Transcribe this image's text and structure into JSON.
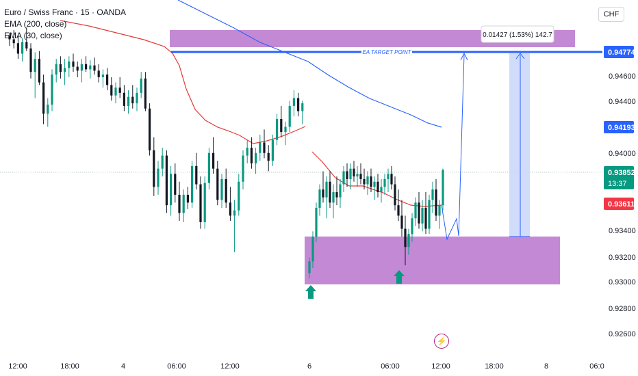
{
  "legend": {
    "title": "Euro / Swiss Franc · 15 · OANDA",
    "ema200": "EMA (200, close)",
    "ema30": "EMA (30, close)"
  },
  "currency_button": "CHF",
  "colors": {
    "up": "#089981",
    "down": "#131722",
    "ema30": "#e53935",
    "ema200": "#2962ff",
    "target_line": "#2962ff",
    "zone": "#c389d4",
    "projection": "#2962ff",
    "measure_box": "#c8d6f8",
    "arrow": "#089981",
    "price_current": "#089981",
    "price_red": "#f23645",
    "price_blue": "#2962ff"
  },
  "chart_data": {
    "type": "candlestick",
    "y_axis_ticks": [
      "0.94600",
      "0.94400",
      "0.94000",
      "0.93400",
      "0.93200",
      "0.93000",
      "0.92800",
      "0.92600"
    ],
    "x_axis_ticks": [
      "12:00",
      "18:00",
      "4",
      "06:00",
      "12:00",
      "6",
      "06:00",
      "12:00",
      "18:00",
      "8",
      "06:0"
    ],
    "ylim": [
      0.925,
      0.9495
    ],
    "price_labels": [
      {
        "value": "0.94774",
        "kind": "target"
      },
      {
        "value": "0.94193",
        "kind": "ema200"
      },
      {
        "value": "0.93852",
        "kind": "current",
        "countdown": "13:37"
      },
      {
        "value": "0.93611",
        "kind": "ema30"
      }
    ],
    "target_line": {
      "price": 0.94774,
      "label": "EA TARGET POINT"
    },
    "measure_label": "0.01427 (1.53%) 142.7",
    "zones": [
      {
        "name": "resistance",
        "top": 0.95,
        "bottom": 0.9487
      },
      {
        "name": "support",
        "top": 0.9336,
        "bottom": 0.9298
      }
    ],
    "candles": [
      [
        0.9488,
        0.949,
        0.948,
        0.9485
      ],
      [
        0.9485,
        0.9492,
        0.9478,
        0.9482
      ],
      [
        0.9482,
        0.9488,
        0.947,
        0.9474
      ],
      [
        0.9474,
        0.9486,
        0.9468,
        0.9483
      ],
      [
        0.9483,
        0.9494,
        0.9476,
        0.9478
      ],
      [
        0.9478,
        0.9482,
        0.9455,
        0.946
      ],
      [
        0.946,
        0.9475,
        0.944,
        0.947
      ],
      [
        0.947,
        0.9476,
        0.945,
        0.9452
      ],
      [
        0.9452,
        0.9458,
        0.942,
        0.9428
      ],
      [
        0.9428,
        0.944,
        0.9418,
        0.9435
      ],
      [
        0.9435,
        0.9462,
        0.943,
        0.9458
      ],
      [
        0.9458,
        0.947,
        0.9452,
        0.9466
      ],
      [
        0.9466,
        0.9472,
        0.9455,
        0.946
      ],
      [
        0.946,
        0.947,
        0.945,
        0.9463
      ],
      [
        0.9463,
        0.9472,
        0.9456,
        0.9468
      ],
      [
        0.9468,
        0.9474,
        0.946,
        0.9464
      ],
      [
        0.9464,
        0.9468,
        0.9456,
        0.9461
      ],
      [
        0.9461,
        0.947,
        0.9452,
        0.9466
      ],
      [
        0.9466,
        0.9472,
        0.946,
        0.9462
      ],
      [
        0.9462,
        0.9469,
        0.9455,
        0.9465
      ],
      [
        0.9465,
        0.9471,
        0.9458,
        0.9461
      ],
      [
        0.9461,
        0.9466,
        0.9452,
        0.9456
      ],
      [
        0.9456,
        0.9462,
        0.9448,
        0.9458
      ],
      [
        0.9458,
        0.9463,
        0.9446,
        0.945
      ],
      [
        0.945,
        0.9456,
        0.9438,
        0.9442
      ],
      [
        0.9442,
        0.9452,
        0.9436,
        0.9448
      ],
      [
        0.9448,
        0.9456,
        0.944,
        0.9444
      ],
      [
        0.9444,
        0.945,
        0.943,
        0.9434
      ],
      [
        0.9434,
        0.9446,
        0.9428,
        0.9441
      ],
      [
        0.9441,
        0.945,
        0.9432,
        0.9436
      ],
      [
        0.9436,
        0.9448,
        0.943,
        0.9444
      ],
      [
        0.9444,
        0.946,
        0.944,
        0.9455
      ],
      [
        0.9455,
        0.946,
        0.943,
        0.9432
      ],
      [
        0.9432,
        0.9436,
        0.9396,
        0.94
      ],
      [
        0.94,
        0.941,
        0.9365,
        0.9372
      ],
      [
        0.9372,
        0.9392,
        0.9366,
        0.9386
      ],
      [
        0.9386,
        0.9402,
        0.938,
        0.9396
      ],
      [
        0.9396,
        0.94,
        0.9352,
        0.9358
      ],
      [
        0.9358,
        0.9388,
        0.935,
        0.9382
      ],
      [
        0.9382,
        0.939,
        0.936,
        0.9366
      ],
      [
        0.9366,
        0.9376,
        0.9346,
        0.9352
      ],
      [
        0.9352,
        0.937,
        0.9345,
        0.9366
      ],
      [
        0.9366,
        0.9372,
        0.9355,
        0.936
      ],
      [
        0.936,
        0.9392,
        0.9356,
        0.9388
      ],
      [
        0.9388,
        0.9398,
        0.937,
        0.9374
      ],
      [
        0.9374,
        0.938,
        0.934,
        0.9345
      ],
      [
        0.9345,
        0.938,
        0.934,
        0.9375
      ],
      [
        0.9375,
        0.9402,
        0.937,
        0.9398
      ],
      [
        0.9398,
        0.941,
        0.9382,
        0.9386
      ],
      [
        0.9386,
        0.9392,
        0.9358,
        0.9362
      ],
      [
        0.9362,
        0.9382,
        0.9356,
        0.9378
      ],
      [
        0.9378,
        0.9386,
        0.9356,
        0.936
      ],
      [
        0.936,
        0.9372,
        0.9346,
        0.935
      ],
      [
        0.935,
        0.9362,
        0.9322,
        0.9354
      ],
      [
        0.9354,
        0.9382,
        0.935,
        0.9376
      ],
      [
        0.9376,
        0.94,
        0.937,
        0.9396
      ],
      [
        0.9396,
        0.9408,
        0.939,
        0.9402
      ],
      [
        0.9402,
        0.941,
        0.9386,
        0.939
      ],
      [
        0.939,
        0.9402,
        0.9382,
        0.9398
      ],
      [
        0.9398,
        0.9412,
        0.9392,
        0.9406
      ],
      [
        0.9406,
        0.9416,
        0.9394,
        0.9398
      ],
      [
        0.9398,
        0.9404,
        0.9384,
        0.9392
      ],
      [
        0.9392,
        0.9412,
        0.9388,
        0.9408
      ],
      [
        0.9408,
        0.9428,
        0.9404,
        0.9424
      ],
      [
        0.9424,
        0.9434,
        0.941,
        0.9414
      ],
      [
        0.9414,
        0.9422,
        0.9404,
        0.9418
      ],
      [
        0.9418,
        0.9438,
        0.9414,
        0.9434
      ],
      [
        0.9434,
        0.9446,
        0.9426,
        0.944
      ],
      [
        0.944,
        0.9444,
        0.9426,
        0.943
      ],
      [
        0.943,
        0.9438,
        0.942,
        0.9436
      ]
    ],
    "candles2": [
      [
        0.9306,
        0.9318,
        0.9302,
        0.9315
      ],
      [
        0.9315,
        0.9338,
        0.931,
        0.9334
      ],
      [
        0.9334,
        0.936,
        0.933,
        0.9356
      ],
      [
        0.9356,
        0.9374,
        0.935,
        0.937
      ],
      [
        0.937,
        0.9384,
        0.936,
        0.9364
      ],
      [
        0.9364,
        0.938,
        0.9348,
        0.9376
      ],
      [
        0.9376,
        0.9384,
        0.9356,
        0.936
      ],
      [
        0.936,
        0.9374,
        0.9348,
        0.9368
      ],
      [
        0.9368,
        0.938,
        0.9358,
        0.9364
      ],
      [
        0.9364,
        0.9378,
        0.9356,
        0.9374
      ],
      [
        0.9374,
        0.9388,
        0.9368,
        0.9384
      ],
      [
        0.9384,
        0.939,
        0.9372,
        0.9378
      ],
      [
        0.9378,
        0.939,
        0.937,
        0.9386
      ],
      [
        0.9386,
        0.9392,
        0.9376,
        0.938
      ],
      [
        0.938,
        0.9388,
        0.9372,
        0.9382
      ],
      [
        0.9382,
        0.939,
        0.9374,
        0.9378
      ],
      [
        0.9378,
        0.9386,
        0.937,
        0.9374
      ],
      [
        0.9374,
        0.9384,
        0.9366,
        0.938
      ],
      [
        0.938,
        0.9386,
        0.9368,
        0.9372
      ],
      [
        0.9372,
        0.938,
        0.9362,
        0.9376
      ],
      [
        0.9376,
        0.9382,
        0.9364,
        0.9368
      ],
      [
        0.9368,
        0.9378,
        0.936,
        0.9372
      ],
      [
        0.9372,
        0.9382,
        0.9366,
        0.9378
      ],
      [
        0.9378,
        0.9386,
        0.9368,
        0.9382
      ],
      [
        0.9382,
        0.9388,
        0.937,
        0.9374
      ],
      [
        0.9374,
        0.938,
        0.9354,
        0.9358
      ],
      [
        0.9358,
        0.937,
        0.9346,
        0.935
      ],
      [
        0.935,
        0.9362,
        0.9334,
        0.934
      ],
      [
        0.934,
        0.935,
        0.9312,
        0.9326
      ],
      [
        0.9326,
        0.934,
        0.932,
        0.9336
      ],
      [
        0.9336,
        0.9352,
        0.933,
        0.9348
      ],
      [
        0.9348,
        0.9364,
        0.9342,
        0.936
      ],
      [
        0.936,
        0.9368,
        0.934,
        0.9344
      ],
      [
        0.9344,
        0.9362,
        0.9338,
        0.9356
      ],
      [
        0.9356,
        0.9368,
        0.9336,
        0.934
      ],
      [
        0.934,
        0.9366,
        0.9336,
        0.9362
      ],
      [
        0.9362,
        0.9376,
        0.9352,
        0.937
      ],
      [
        0.937,
        0.9378,
        0.9346,
        0.935
      ],
      [
        0.935,
        0.9362,
        0.934,
        0.9358
      ],
      [
        0.9358,
        0.9386,
        0.9354,
        0.9385
      ]
    ]
  }
}
